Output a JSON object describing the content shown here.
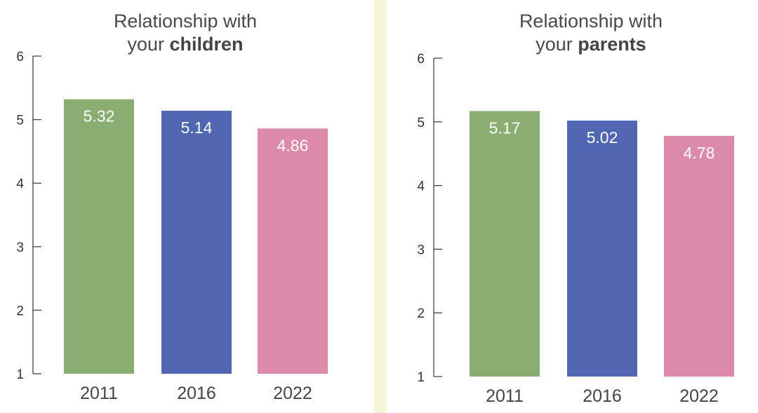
{
  "panels": [
    {
      "title_line1": "Relationship with",
      "title_prefix": "your ",
      "title_bold": "children"
    },
    {
      "title_line1": "Relationship with",
      "title_prefix": "your ",
      "title_bold": "parents"
    }
  ],
  "colors": {
    "2011": "#8aae72",
    "2016": "#4f67b0",
    "2022": "#db8ba7",
    "divider": "#f5f6d6",
    "axis": "#444444"
  },
  "chart_data": [
    {
      "type": "bar",
      "title": "Relationship with your children",
      "categories": [
        "2011",
        "2016",
        "2022"
      ],
      "values": [
        5.32,
        5.14,
        4.86
      ],
      "value_labels": [
        "5.32",
        "5.14",
        "4.86"
      ],
      "ylim": [
        1,
        6
      ],
      "yticks": [
        1,
        2,
        3,
        4,
        5,
        6
      ],
      "grid": false,
      "legend": "none"
    },
    {
      "type": "bar",
      "title": "Relationship with your parents",
      "categories": [
        "2011",
        "2016",
        "2022"
      ],
      "values": [
        5.17,
        5.02,
        4.78
      ],
      "value_labels": [
        "5.17",
        "5.02",
        "4.78"
      ],
      "ylim": [
        1,
        6
      ],
      "yticks": [
        1,
        2,
        3,
        4,
        5,
        6
      ],
      "grid": false,
      "legend": "none"
    }
  ]
}
